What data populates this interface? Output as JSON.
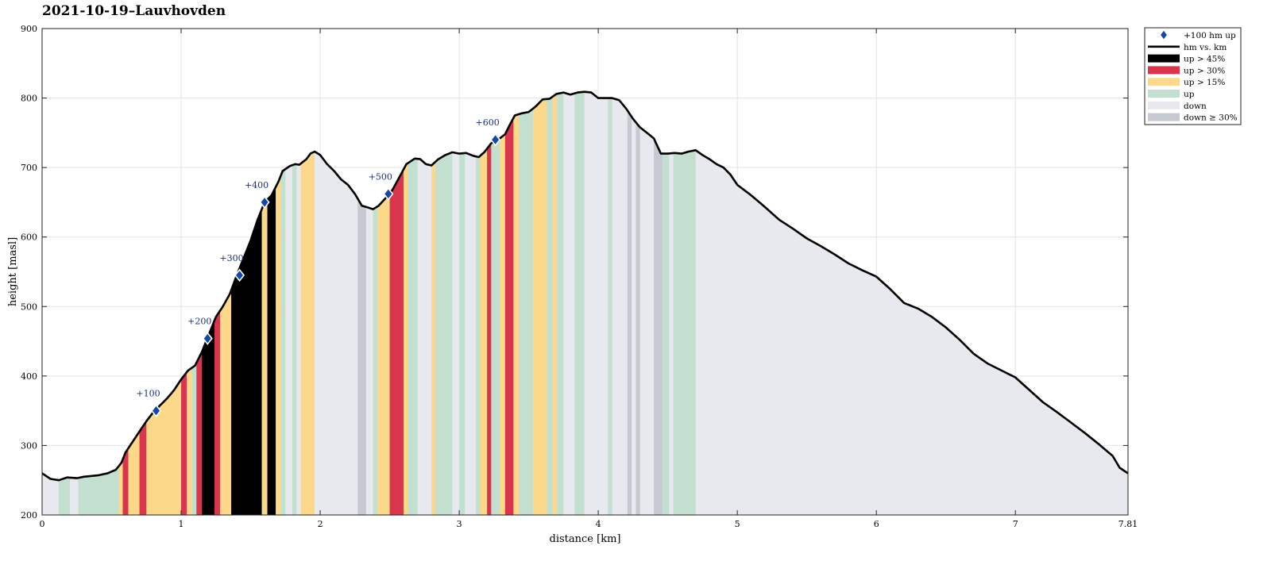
{
  "chart_data": {
    "type": "area",
    "title": "2021-10-19–Lauvhovden",
    "xlabel": "distance [km]",
    "ylabel": "height [masl]",
    "xlim": [
      0,
      7.81
    ],
    "ylim": [
      200,
      900
    ],
    "x_ticks": [
      "0",
      "1",
      "2",
      "3",
      "4",
      "5",
      "6",
      "7",
      "7.81"
    ],
    "y_ticks": [
      "200",
      "300",
      "400",
      "500",
      "600",
      "700",
      "800",
      "900"
    ],
    "grid": true,
    "legend_position": "outside-top-right",
    "profile": [
      [
        0,
        260
      ],
      [
        0.06,
        252
      ],
      [
        0.12,
        250
      ],
      [
        0.18,
        254
      ],
      [
        0.25,
        253
      ],
      [
        0.3,
        255
      ],
      [
        0.4,
        257
      ],
      [
        0.47,
        260
      ],
      [
        0.53,
        265
      ],
      [
        0.57,
        275
      ],
      [
        0.6,
        290
      ],
      [
        0.65,
        305
      ],
      [
        0.7,
        320
      ],
      [
        0.75,
        335
      ],
      [
        0.8,
        348
      ],
      [
        0.85,
        358
      ],
      [
        0.9,
        368
      ],
      [
        0.95,
        380
      ],
      [
        1.0,
        395
      ],
      [
        1.05,
        408
      ],
      [
        1.1,
        415
      ],
      [
        1.15,
        435
      ],
      [
        1.2,
        460
      ],
      [
        1.25,
        485
      ],
      [
        1.3,
        500
      ],
      [
        1.35,
        518
      ],
      [
        1.4,
        545
      ],
      [
        1.45,
        570
      ],
      [
        1.5,
        595
      ],
      [
        1.55,
        625
      ],
      [
        1.6,
        650
      ],
      [
        1.65,
        660
      ],
      [
        1.7,
        680
      ],
      [
        1.73,
        695
      ],
      [
        1.78,
        702
      ],
      [
        1.82,
        705
      ],
      [
        1.85,
        704
      ],
      [
        1.9,
        712
      ],
      [
        1.93,
        720
      ],
      [
        1.96,
        723
      ],
      [
        2.0,
        718
      ],
      [
        2.05,
        705
      ],
      [
        2.1,
        695
      ],
      [
        2.15,
        683
      ],
      [
        2.2,
        675
      ],
      [
        2.25,
        662
      ],
      [
        2.3,
        645
      ],
      [
        2.35,
        642
      ],
      [
        2.38,
        640
      ],
      [
        2.42,
        645
      ],
      [
        2.48,
        658
      ],
      [
        2.52,
        668
      ],
      [
        2.58,
        690
      ],
      [
        2.62,
        705
      ],
      [
        2.68,
        713
      ],
      [
        2.72,
        712
      ],
      [
        2.76,
        705
      ],
      [
        2.8,
        703
      ],
      [
        2.85,
        712
      ],
      [
        2.9,
        718
      ],
      [
        2.95,
        722
      ],
      [
        3.0,
        720
      ],
      [
        3.05,
        721
      ],
      [
        3.1,
        717
      ],
      [
        3.14,
        715
      ],
      [
        3.18,
        722
      ],
      [
        3.23,
        735
      ],
      [
        3.28,
        740
      ],
      [
        3.33,
        748
      ],
      [
        3.36,
        760
      ],
      [
        3.4,
        775
      ],
      [
        3.45,
        778
      ],
      [
        3.5,
        780
      ],
      [
        3.55,
        788
      ],
      [
        3.6,
        798
      ],
      [
        3.65,
        799
      ],
      [
        3.7,
        806
      ],
      [
        3.75,
        808
      ],
      [
        3.8,
        805
      ],
      [
        3.85,
        808
      ],
      [
        3.9,
        809
      ],
      [
        3.95,
        808
      ],
      [
        4.0,
        800
      ],
      [
        4.05,
        800
      ],
      [
        4.1,
        800
      ],
      [
        4.15,
        797
      ],
      [
        4.2,
        785
      ],
      [
        4.25,
        770
      ],
      [
        4.3,
        758
      ],
      [
        4.35,
        750
      ],
      [
        4.4,
        742
      ],
      [
        4.45,
        720
      ],
      [
        4.5,
        720
      ],
      [
        4.55,
        721
      ],
      [
        4.6,
        720
      ],
      [
        4.65,
        723
      ],
      [
        4.7,
        725
      ],
      [
        4.75,
        718
      ],
      [
        4.8,
        712
      ],
      [
        4.85,
        705
      ],
      [
        4.9,
        700
      ],
      [
        4.95,
        690
      ],
      [
        5.0,
        675
      ],
      [
        5.1,
        660
      ],
      [
        5.2,
        643
      ],
      [
        5.3,
        625
      ],
      [
        5.4,
        612
      ],
      [
        5.5,
        598
      ],
      [
        5.6,
        587
      ],
      [
        5.7,
        575
      ],
      [
        5.8,
        562
      ],
      [
        5.9,
        552
      ],
      [
        6.0,
        543
      ],
      [
        6.1,
        525
      ],
      [
        6.2,
        505
      ],
      [
        6.3,
        497
      ],
      [
        6.4,
        485
      ],
      [
        6.5,
        470
      ],
      [
        6.6,
        452
      ],
      [
        6.7,
        432
      ],
      [
        6.8,
        418
      ],
      [
        6.9,
        408
      ],
      [
        7.0,
        398
      ],
      [
        7.1,
        380
      ],
      [
        7.2,
        362
      ],
      [
        7.3,
        348
      ],
      [
        7.4,
        333
      ],
      [
        7.5,
        318
      ],
      [
        7.6,
        302
      ],
      [
        7.7,
        285
      ],
      [
        7.75,
        268
      ],
      [
        7.81,
        260
      ]
    ],
    "segments": [
      {
        "from": 0,
        "to": 0.12,
        "type": "down"
      },
      {
        "from": 0.12,
        "to": 0.2,
        "type": "up"
      },
      {
        "from": 0.2,
        "to": 0.26,
        "type": "down"
      },
      {
        "from": 0.26,
        "to": 0.55,
        "type": "up"
      },
      {
        "from": 0.55,
        "to": 0.58,
        "type": "up15"
      },
      {
        "from": 0.58,
        "to": 0.62,
        "type": "up30"
      },
      {
        "from": 0.62,
        "to": 0.7,
        "type": "up15"
      },
      {
        "from": 0.7,
        "to": 0.75,
        "type": "up30"
      },
      {
        "from": 0.75,
        "to": 1.0,
        "type": "up15"
      },
      {
        "from": 1.0,
        "to": 1.04,
        "type": "up30"
      },
      {
        "from": 1.04,
        "to": 1.08,
        "type": "up15"
      },
      {
        "from": 1.08,
        "to": 1.11,
        "type": "up"
      },
      {
        "from": 1.11,
        "to": 1.15,
        "type": "up30"
      },
      {
        "from": 1.15,
        "to": 1.24,
        "type": "up45"
      },
      {
        "from": 1.24,
        "to": 1.28,
        "type": "up30"
      },
      {
        "from": 1.28,
        "to": 1.36,
        "type": "up15"
      },
      {
        "from": 1.36,
        "to": 1.58,
        "type": "up45"
      },
      {
        "from": 1.58,
        "to": 1.62,
        "type": "up15"
      },
      {
        "from": 1.62,
        "to": 1.68,
        "type": "up45"
      },
      {
        "from": 1.68,
        "to": 1.72,
        "type": "up15"
      },
      {
        "from": 1.72,
        "to": 1.75,
        "type": "up"
      },
      {
        "from": 1.75,
        "to": 1.8,
        "type": "down"
      },
      {
        "from": 1.8,
        "to": 1.83,
        "type": "up"
      },
      {
        "from": 1.83,
        "to": 1.86,
        "type": "down"
      },
      {
        "from": 1.86,
        "to": 1.96,
        "type": "up15"
      },
      {
        "from": 1.96,
        "to": 2.27,
        "type": "down"
      },
      {
        "from": 2.27,
        "to": 2.33,
        "type": "down30"
      },
      {
        "from": 2.33,
        "to": 2.38,
        "type": "down"
      },
      {
        "from": 2.38,
        "to": 2.41,
        "type": "up"
      },
      {
        "from": 2.41,
        "to": 2.5,
        "type": "up15"
      },
      {
        "from": 2.5,
        "to": 2.6,
        "type": "up30"
      },
      {
        "from": 2.6,
        "to": 2.63,
        "type": "up15"
      },
      {
        "from": 2.63,
        "to": 2.7,
        "type": "up"
      },
      {
        "from": 2.7,
        "to": 2.8,
        "type": "down"
      },
      {
        "from": 2.8,
        "to": 2.83,
        "type": "up15"
      },
      {
        "from": 2.83,
        "to": 2.95,
        "type": "up"
      },
      {
        "from": 2.95,
        "to": 3.0,
        "type": "down"
      },
      {
        "from": 3.0,
        "to": 3.04,
        "type": "up"
      },
      {
        "from": 3.04,
        "to": 3.12,
        "type": "down"
      },
      {
        "from": 3.12,
        "to": 3.15,
        "type": "up"
      },
      {
        "from": 3.15,
        "to": 3.2,
        "type": "up15"
      },
      {
        "from": 3.2,
        "to": 3.23,
        "type": "up30"
      },
      {
        "from": 3.23,
        "to": 3.29,
        "type": "up"
      },
      {
        "from": 3.29,
        "to": 3.33,
        "type": "up15"
      },
      {
        "from": 3.33,
        "to": 3.39,
        "type": "up30"
      },
      {
        "from": 3.39,
        "to": 3.43,
        "type": "up15"
      },
      {
        "from": 3.43,
        "to": 3.53,
        "type": "up"
      },
      {
        "from": 3.53,
        "to": 3.63,
        "type": "up15"
      },
      {
        "from": 3.63,
        "to": 3.67,
        "type": "up"
      },
      {
        "from": 3.67,
        "to": 3.7,
        "type": "up15"
      },
      {
        "from": 3.7,
        "to": 3.75,
        "type": "up"
      },
      {
        "from": 3.75,
        "to": 3.83,
        "type": "down"
      },
      {
        "from": 3.83,
        "to": 3.9,
        "type": "up"
      },
      {
        "from": 3.9,
        "to": 4.07,
        "type": "down"
      },
      {
        "from": 4.07,
        "to": 4.1,
        "type": "up"
      },
      {
        "from": 4.1,
        "to": 4.21,
        "type": "down"
      },
      {
        "from": 4.21,
        "to": 4.24,
        "type": "down30"
      },
      {
        "from": 4.24,
        "to": 4.27,
        "type": "down"
      },
      {
        "from": 4.27,
        "to": 4.3,
        "type": "down30"
      },
      {
        "from": 4.3,
        "to": 4.4,
        "type": "down"
      },
      {
        "from": 4.4,
        "to": 4.46,
        "type": "down30"
      },
      {
        "from": 4.46,
        "to": 4.51,
        "type": "up"
      },
      {
        "from": 4.51,
        "to": 4.54,
        "type": "down"
      },
      {
        "from": 4.54,
        "to": 4.7,
        "type": "up"
      },
      {
        "from": 4.7,
        "to": 7.81,
        "type": "down"
      }
    ],
    "markers": [
      {
        "label": "+100",
        "x": 0.82,
        "y": 350
      },
      {
        "label": "+200",
        "x": 1.19,
        "y": 454
      },
      {
        "label": "+300",
        "x": 1.42,
        "y": 545
      },
      {
        "label": "+400",
        "x": 1.6,
        "y": 650
      },
      {
        "label": "+500",
        "x": 2.49,
        "y": 662
      },
      {
        "label": "+600",
        "x": 3.26,
        "y": 740
      }
    ],
    "legend": [
      {
        "key": "marker",
        "label": "+100 hm up"
      },
      {
        "key": "line",
        "label": "hm vs. km"
      },
      {
        "key": "up45",
        "label": "up > 45%"
      },
      {
        "key": "up30",
        "label": "up > 30%"
      },
      {
        "key": "up15",
        "label": "up > 15%"
      },
      {
        "key": "up",
        "label": "up"
      },
      {
        "key": "down",
        "label": "down"
      },
      {
        "key": "down30",
        "label": "down ≥ 30%"
      }
    ],
    "colors": {
      "up45": "#000000",
      "up30": "#d9364e",
      "up15": "#fcd98a",
      "up": "#c2dfd0",
      "down": "#e8e9ee",
      "down30": "#c6c8d2",
      "line": "#000000",
      "marker": "#1347a8"
    }
  }
}
